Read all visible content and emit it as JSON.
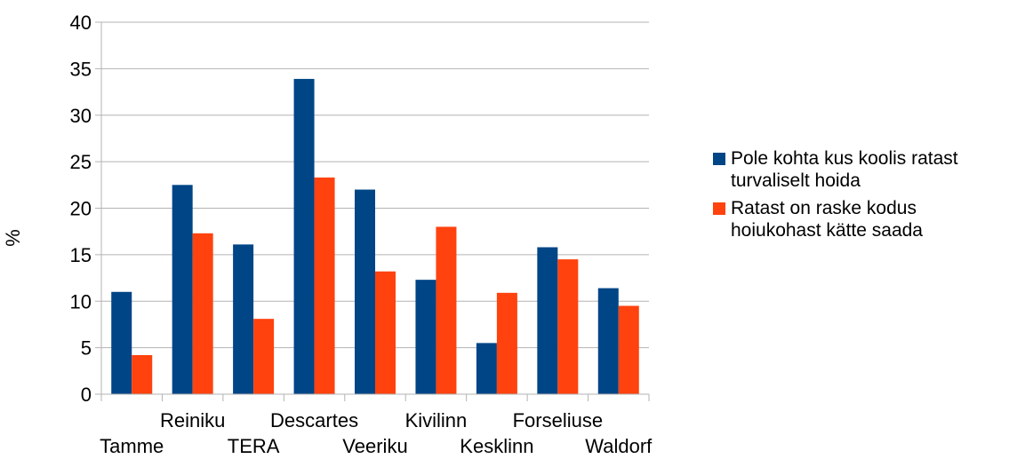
{
  "chart_data": {
    "type": "bar",
    "title": "",
    "xlabel": "",
    "ylabel": "%",
    "ylim": [
      0,
      40
    ],
    "yticks": [
      0,
      5,
      10,
      15,
      20,
      25,
      30,
      35,
      40
    ],
    "grid": true,
    "legend_position": "right",
    "categories": [
      "Tamme",
      "Reiniku",
      "TERA",
      "Descartes",
      "Veeriku",
      "Kivilinn",
      "Kesklinn",
      "Forseliuse",
      "Waldorf"
    ],
    "series": [
      {
        "name": "Pole kohta kus koolis ratast turvaliselt hoida",
        "color": "#004586",
        "values": [
          11.0,
          22.5,
          16.1,
          33.9,
          22.0,
          12.3,
          5.5,
          15.8,
          11.4
        ]
      },
      {
        "name": "Ratast on raske kodus hoiukohast kätte saada",
        "color": "#ff420e",
        "values": [
          4.2,
          17.3,
          8.1,
          23.3,
          13.2,
          18.0,
          10.9,
          14.5,
          9.5
        ]
      }
    ]
  }
}
